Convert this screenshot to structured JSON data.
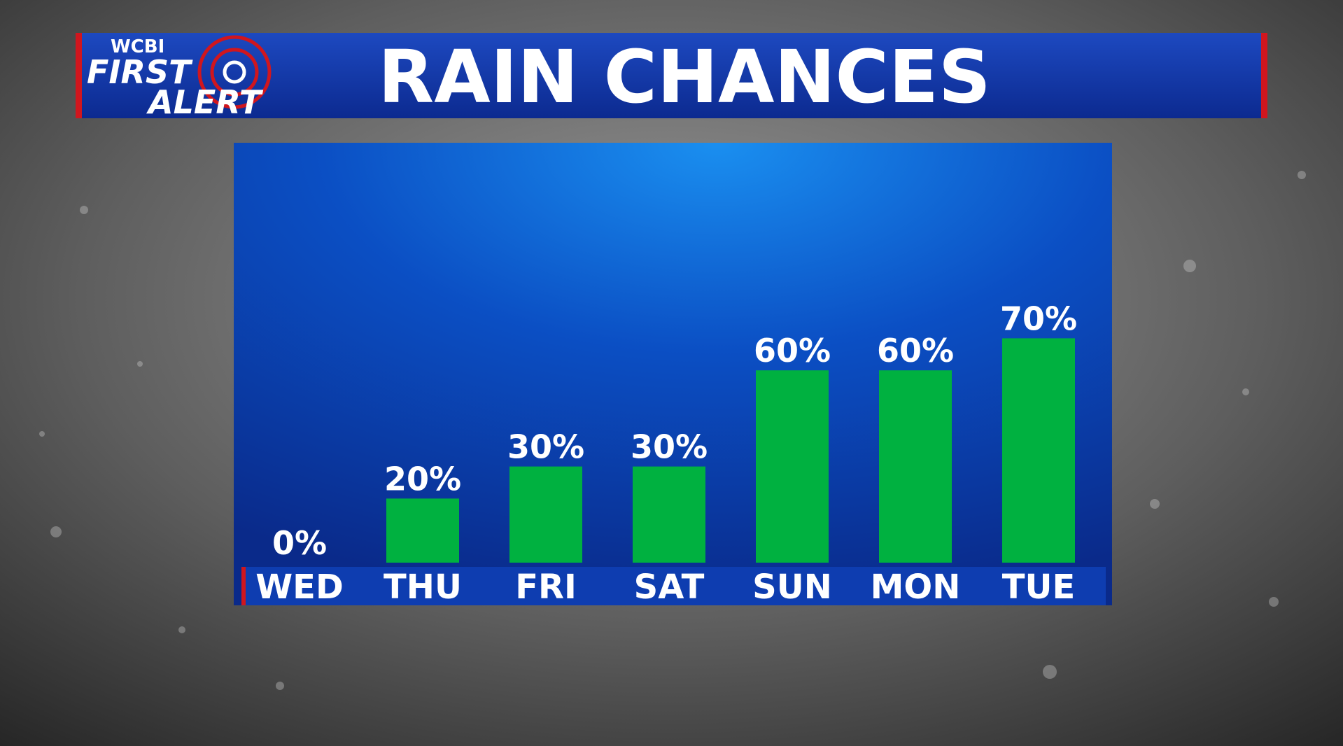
{
  "logo": {
    "station": "WCBI",
    "line1": "FIRST",
    "line2": "ALERT"
  },
  "chart_data": {
    "type": "bar",
    "title": "RAIN CHANCES",
    "categories": [
      "WED",
      "THU",
      "FRI",
      "SAT",
      "SUN",
      "MON",
      "TUE"
    ],
    "values": [
      0,
      20,
      30,
      30,
      60,
      60,
      70
    ],
    "value_labels": [
      "0%",
      "20%",
      "30%",
      "30%",
      "60%",
      "60%",
      "70%"
    ],
    "color": "#00b140"
  }
}
